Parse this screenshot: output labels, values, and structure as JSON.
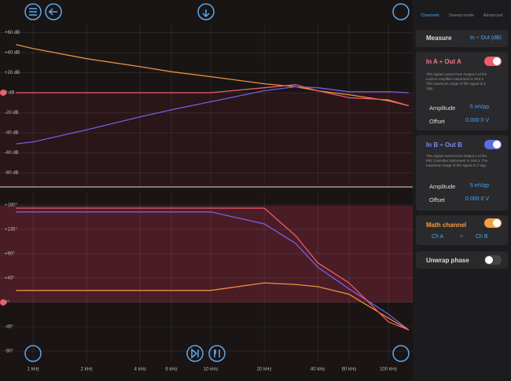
{
  "chart_data": [
    {
      "type": "line",
      "x_scale": "log",
      "x": [
        0.8,
        1,
        2,
        4,
        6,
        10,
        20,
        30,
        40,
        60,
        100,
        130
      ],
      "xlim": [
        0.65,
        137
      ],
      "ylim": [
        -94,
        69
      ],
      "yticks": [
        {
          "value": 60,
          "label": "+60 dB"
        },
        {
          "value": 40,
          "label": "+40 dB"
        },
        {
          "value": 20,
          "label": "+20 dB"
        },
        {
          "value": 0,
          "label": "0 dB"
        },
        {
          "value": -20,
          "label": "-20 dB"
        },
        {
          "value": -40,
          "label": "-40 dB"
        },
        {
          "value": -60,
          "label": "-60 dB"
        },
        {
          "value": -80,
          "label": "-80 dB"
        }
      ],
      "grid": true,
      "series": [
        {
          "color": "#e8913a",
          "values": [
            48,
            44,
            34,
            26,
            21,
            16,
            9,
            6,
            2,
            -2,
            -8,
            -13
          ]
        },
        {
          "color": "#6d5fe0",
          "values": [
            -51,
            -49,
            -37,
            -24,
            -17,
            -9,
            2,
            6,
            5,
            1,
            1,
            0
          ]
        },
        {
          "color": "#f05a6a",
          "values": [
            0,
            0,
            0,
            0,
            0,
            0,
            5,
            8,
            2,
            -5,
            -7,
            -13
          ]
        }
      ]
    },
    {
      "type": "line",
      "x_scale": "log",
      "x": [
        0.8,
        1,
        2,
        4,
        6,
        10,
        20,
        30,
        40,
        60,
        100,
        130
      ],
      "xlim": [
        0.65,
        137
      ],
      "ylim": [
        -109,
        203
      ],
      "xticks": [
        {
          "value": 1,
          "label": "1 kHz"
        },
        {
          "value": 2,
          "label": "2 kHz"
        },
        {
          "value": 4,
          "label": "4 kHz"
        },
        {
          "value": 6,
          "label": "6 kHz"
        },
        {
          "value": 10,
          "label": "10 kHz"
        },
        {
          "value": 20,
          "label": "20 kHz"
        },
        {
          "value": 40,
          "label": "40 kHz"
        },
        {
          "value": 60,
          "label": "60 kHz"
        },
        {
          "value": 100,
          "label": "100 kHz"
        }
      ],
      "yticks": [
        {
          "value": 180,
          "label": "+180°"
        },
        {
          "value": 135,
          "label": "+135°"
        },
        {
          "value": 90,
          "label": "+90°"
        },
        {
          "value": 45,
          "label": "+45°"
        },
        {
          "value": 0,
          "label": "0°"
        },
        {
          "value": -45,
          "label": "-45°"
        },
        {
          "value": -90,
          "label": "-90°"
        }
      ],
      "grid": true,
      "series": [
        {
          "color": "#7a5fe0",
          "values": [
            167,
            167,
            167,
            167,
            167,
            167,
            145,
            109,
            65,
            25,
            -22,
            -51
          ]
        },
        {
          "color": "#e8913a",
          "values": [
            22,
            22,
            22,
            22,
            22,
            22,
            36,
            33,
            29,
            15,
            -29,
            -51
          ]
        },
        {
          "color": "#f05a6a",
          "values": [
            174,
            174,
            174,
            174,
            174,
            174,
            174,
            123,
            73,
            36,
            -36,
            -51
          ]
        }
      ]
    }
  ],
  "panel": {
    "tabs": [
      "Channels",
      "Sweep mode",
      "Advanced"
    ],
    "measure": {
      "label": "Measure",
      "value": "In ÷ Out (dB)"
    },
    "channel_a": {
      "title": "In A ÷ Out A",
      "description": "This signal comes from Output A of the Lock-in Amplifier instrument in Slot 1. The maximum range of this signal is 2 Vpp.",
      "amplitude_label": "Amplitude",
      "amplitude": "5 mVpp",
      "offset_label": "Offset",
      "offset": "0.000 0 V"
    },
    "channel_b": {
      "title": "In B ÷ Out B",
      "description": "This signal comes from Output A of the PID Controller instrument in Slot 3. The maximum range of this signal is 2 Vpp.",
      "amplitude_label": "Amplitude",
      "amplitude": "5 mVpp",
      "offset_label": "Offset",
      "offset": "0.000 0 V"
    },
    "math": {
      "title": "Math channel",
      "a": "Ch A",
      "op": "÷",
      "b": "Ch B"
    },
    "unwrap": "Unwrap phase"
  }
}
